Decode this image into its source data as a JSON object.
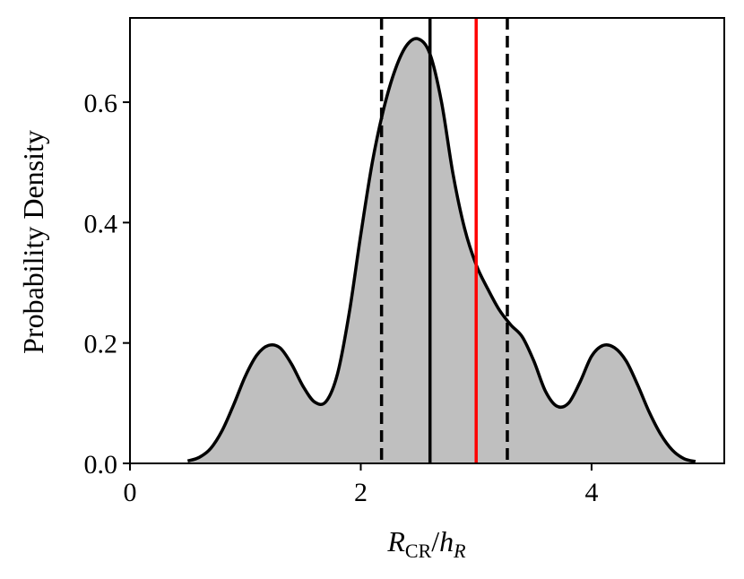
{
  "chart_data": {
    "type": "area",
    "title": "",
    "xlabel": {
      "main": "R",
      "main_sub": "CR",
      "separator": "/",
      "denom": "h",
      "denom_sub": "R"
    },
    "ylabel": "Probability Density",
    "xlim": [
      0,
      5.15
    ],
    "ylim": [
      0,
      0.74
    ],
    "xticks": [
      0,
      2,
      4
    ],
    "xtick_labels": [
      "0",
      "2",
      "4"
    ],
    "yticks": [
      0.0,
      0.2,
      0.4,
      0.6
    ],
    "ytick_labels": [
      "0.0",
      "0.2",
      "0.4",
      "0.6"
    ],
    "grid": false,
    "series": [
      {
        "fill": "#bfbfbf",
        "stroke": "#000000",
        "x": [
          0.5,
          0.6,
          0.7,
          0.8,
          0.9,
          1.0,
          1.1,
          1.2,
          1.3,
          1.4,
          1.5,
          1.6,
          1.7,
          1.8,
          1.9,
          2.0,
          2.1,
          2.2,
          2.3,
          2.4,
          2.5,
          2.6,
          2.7,
          2.8,
          2.9,
          3.0,
          3.1,
          3.2,
          3.3,
          3.4,
          3.5,
          3.6,
          3.7,
          3.8,
          3.9,
          4.0,
          4.1,
          4.2,
          4.3,
          4.4,
          4.5,
          4.6,
          4.7,
          4.8,
          4.9
        ],
        "y": [
          0.004,
          0.01,
          0.025,
          0.055,
          0.098,
          0.145,
          0.18,
          0.196,
          0.192,
          0.165,
          0.128,
          0.102,
          0.103,
          0.15,
          0.25,
          0.38,
          0.5,
          0.59,
          0.655,
          0.695,
          0.705,
          0.68,
          0.6,
          0.48,
          0.39,
          0.33,
          0.29,
          0.255,
          0.23,
          0.21,
          0.17,
          0.12,
          0.095,
          0.1,
          0.135,
          0.178,
          0.196,
          0.192,
          0.17,
          0.13,
          0.085,
          0.048,
          0.022,
          0.008,
          0.003
        ]
      }
    ],
    "vlines": [
      {
        "x": 2.18,
        "color": "#000000",
        "style": "dashed"
      },
      {
        "x": 2.6,
        "color": "#000000",
        "style": "solid"
      },
      {
        "x": 3.0,
        "color": "#ff0000",
        "style": "solid"
      },
      {
        "x": 3.27,
        "color": "#000000",
        "style": "dashed"
      }
    ]
  }
}
